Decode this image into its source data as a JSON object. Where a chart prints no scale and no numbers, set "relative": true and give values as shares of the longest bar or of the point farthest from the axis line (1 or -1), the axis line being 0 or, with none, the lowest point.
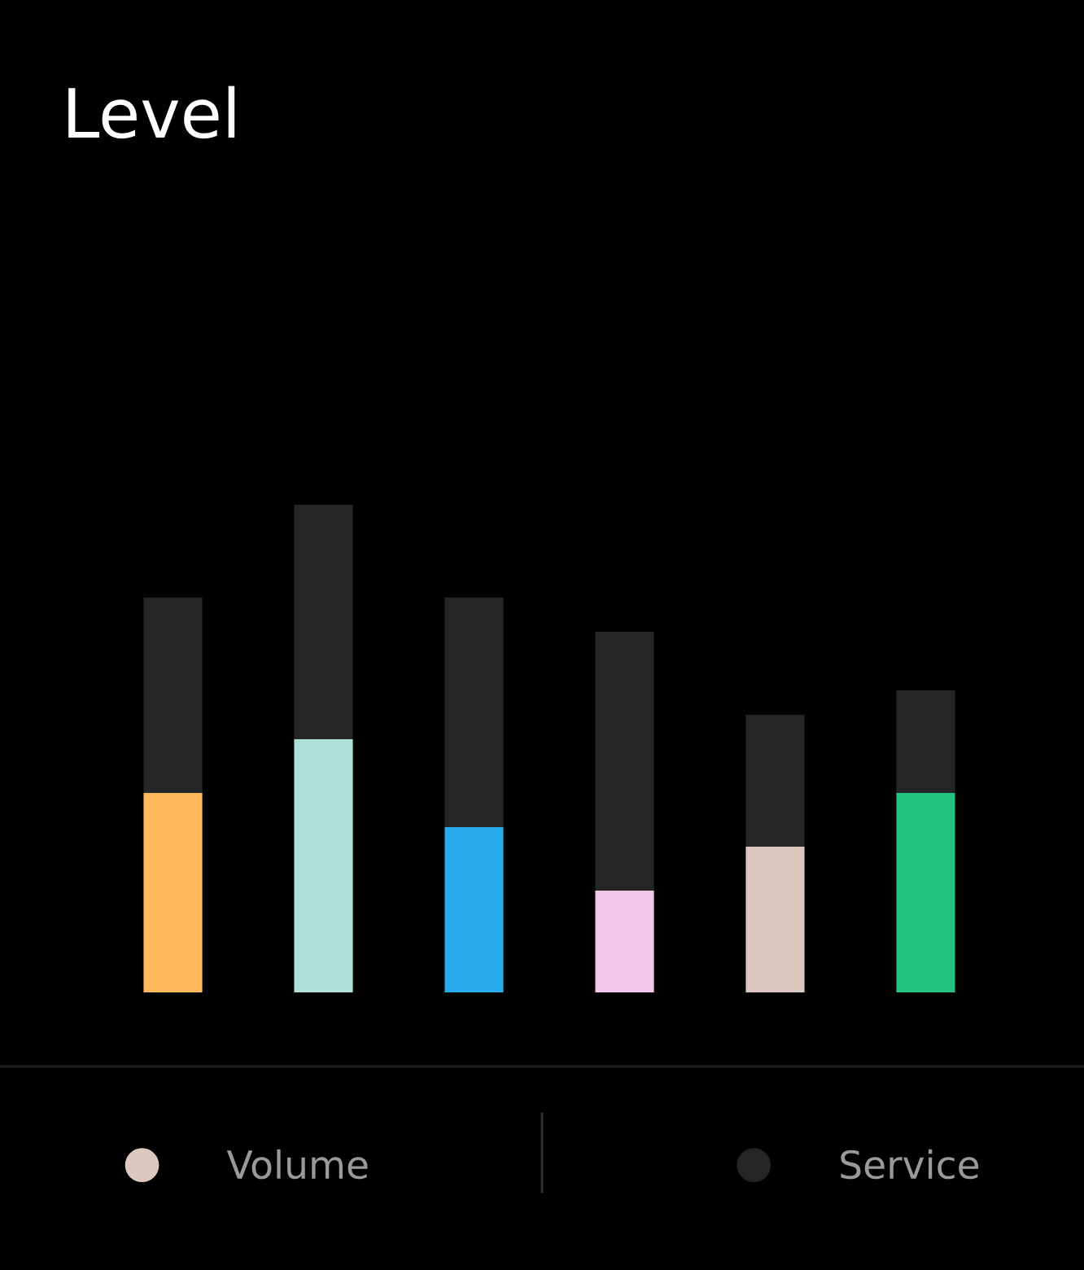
{
  "chart_data": {
    "type": "bar",
    "title": "Level",
    "stacked": true,
    "relative": true,
    "legend": "bottom",
    "categories": [
      null,
      null,
      null,
      null,
      null,
      null
    ],
    "series": [
      {
        "name": "Volume",
        "color": "#dcc8bf",
        "colors": [
          "#ffb85c",
          "#aee0da",
          "#2aabee",
          "#f3c6ec",
          "#dcc8bf",
          "#22c47f"
        ],
        "values": [
          0.41,
          0.52,
          0.34,
          0.21,
          0.3,
          0.41
        ]
      },
      {
        "name": "Service",
        "color": "#242527",
        "values": [
          0.4,
          0.48,
          0.47,
          0.53,
          0.27,
          0.21
        ]
      }
    ]
  }
}
